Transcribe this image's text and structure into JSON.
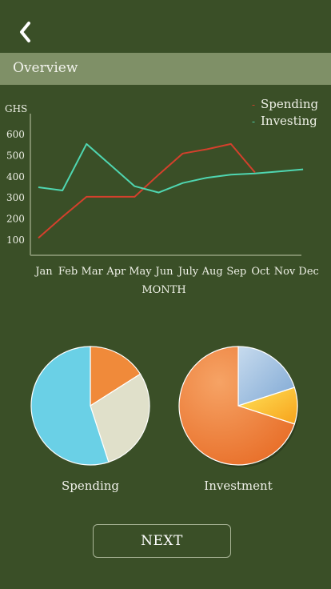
{
  "header": {
    "back_icon": "chevron-left-icon",
    "section_title": "Overview"
  },
  "chart_data": [
    {
      "type": "line",
      "ylabel": "GHS",
      "xlabel": "MONTH",
      "ylim": [
        60,
        640
      ],
      "y_ticks": [
        100,
        200,
        300,
        400,
        500,
        600
      ],
      "categories": [
        "Jan",
        "Feb",
        "Mar",
        "Apr",
        "May",
        "Jun",
        "July",
        "Aug",
        "Sep",
        "Oct",
        "Nov",
        "Dec"
      ],
      "grid": false,
      "legend_position": "top-right",
      "series": [
        {
          "name": "Spending",
          "color": "#d4402c",
          "values": [
            110,
            210,
            305,
            305,
            305,
            410,
            510,
            530,
            555,
            420,
            null,
            null
          ]
        },
        {
          "name": "Investing",
          "color": "#4fd6b1",
          "values": [
            350,
            335,
            555,
            455,
            355,
            325,
            370,
            395,
            410,
            415,
            425,
            435
          ]
        }
      ]
    },
    {
      "type": "pie",
      "title": "Spending",
      "slices": [
        {
          "value": 16,
          "color": "#f08a3a"
        },
        {
          "value": 29,
          "color": "#e0e0ca"
        },
        {
          "value": 55,
          "color": "#6ad0e6"
        }
      ]
    },
    {
      "type": "pie",
      "title": "Investment",
      "slices": [
        {
          "value": 20,
          "color": "#8fb5dc"
        },
        {
          "value": 10,
          "color": "#ffbb22"
        },
        {
          "value": 70,
          "color": "#f27a30"
        }
      ]
    }
  ],
  "footer": {
    "next_label": "NEXT"
  }
}
